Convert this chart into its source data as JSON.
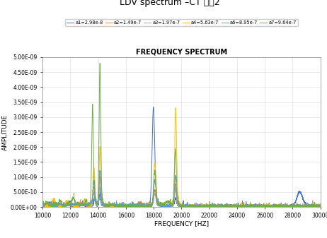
{
  "title": "LDV spectrum –CT 시펴2",
  "inner_title": "FREQUENCY SPECTRUM",
  "xlabel": "FREQUENCY [HZ]",
  "ylabel": "AMPLITUDE",
  "xlim": [
    10000,
    30000
  ],
  "ylim": [
    0,
    5e-09
  ],
  "yticks": [
    0.0,
    5e-10,
    1e-09,
    1.5e-09,
    2e-09,
    2.5e-09,
    3e-09,
    3.5e-09,
    4e-09,
    4.5e-09,
    5e-09
  ],
  "xticks": [
    10000,
    12000,
    14000,
    16000,
    18000,
    20000,
    22000,
    24000,
    26000,
    28000,
    30000
  ],
  "series": [
    {
      "label": "a1=2.98e-8",
      "color": "#4472c4",
      "linewidth": 0.7
    },
    {
      "label": "a2=1.49e-7",
      "color": "#ed7d31",
      "linewidth": 0.7
    },
    {
      "label": "a3=1.97e-7",
      "color": "#a5a5a5",
      "linewidth": 0.7
    },
    {
      "label": "a4=5.63e-7",
      "color": "#ffc000",
      "linewidth": 0.7
    },
    {
      "label": "a6=8.95e-7",
      "color": "#5b9bd5",
      "linewidth": 0.7
    },
    {
      "label": "a7=9.64e-7",
      "color": "#70ad47",
      "linewidth": 0.7
    }
  ],
  "background_color": "#ffffff",
  "grid_color": "#d8d8d8"
}
